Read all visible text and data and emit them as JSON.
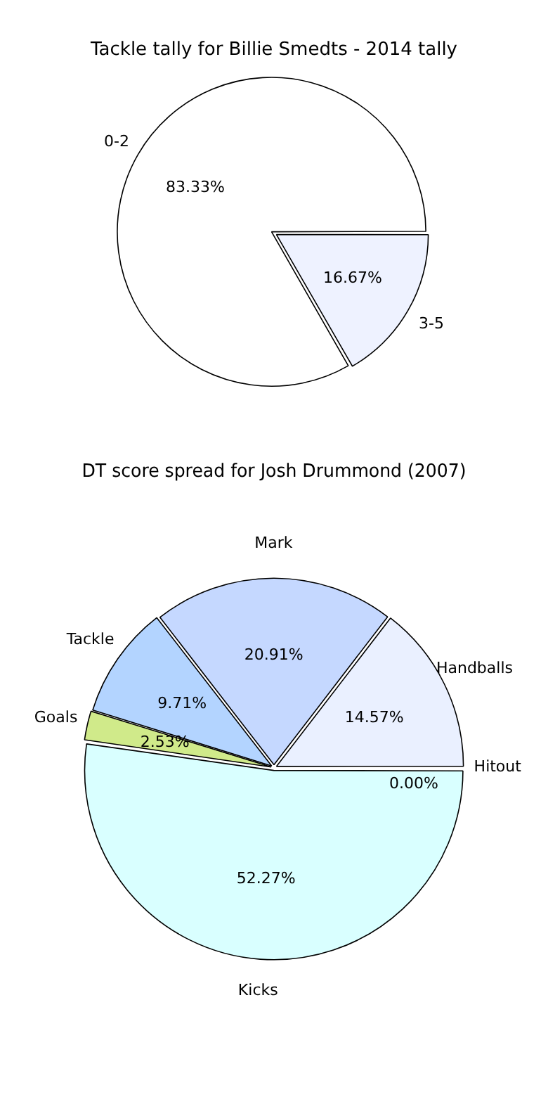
{
  "chart_data": [
    {
      "type": "pie",
      "title": "Tackle tally for Billie Smedts - 2014 tally",
      "categories": [
        "3-5",
        "0-2"
      ],
      "values": [
        16.67,
        83.33
      ],
      "colors": [
        "#eef2ff",
        "#ffffff"
      ],
      "value_labels": [
        "16.67%",
        "83.33%"
      ]
    },
    {
      "type": "pie",
      "title": "DT score spread for Josh Drummond (2007)",
      "categories": [
        "Hitout",
        "Kicks",
        "Goals",
        "Tackle",
        "Mark",
        "Handballs"
      ],
      "values": [
        0.0,
        52.27,
        2.53,
        9.71,
        20.91,
        14.57
      ],
      "colors": [
        "#f0f0ff",
        "#d9ffff",
        "#d0ea8a",
        "#b3d4ff",
        "#c5d8ff",
        "#eaf0ff"
      ],
      "value_labels": [
        "0.00%",
        "52.27%",
        "2.53%",
        "9.71%",
        "20.91%",
        "14.57%"
      ]
    }
  ]
}
